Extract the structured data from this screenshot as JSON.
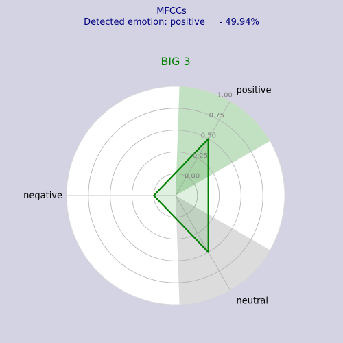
{
  "header": {
    "feature": "MFCCs",
    "detected_line": "Detected emotion: positive     - 49.94%"
  },
  "colors": {
    "background": "#d4d3e3",
    "header_text": "#000080",
    "title_text": "#008000",
    "polygon": "#008000",
    "positive_wedge": "#c2e0c2",
    "other_wedge": "#dcdcdc",
    "grid": "#b0b0b0"
  },
  "chart_data": {
    "type": "radar",
    "title": "BIG 3",
    "categories": [
      "positive",
      "neutral",
      "negative"
    ],
    "angles_deg": [
      60,
      300,
      180
    ],
    "values": [
      0.4994,
      0.5,
      0.0
    ],
    "r_ticks": [
      0.0,
      0.25,
      0.5,
      0.75,
      1.0
    ],
    "r_tick_labels": [
      "0.00",
      "0.25",
      "0.50",
      "0.75",
      "1.00"
    ],
    "r_min": -0.25,
    "r_max": 1.0,
    "grid": true,
    "highlighted_category": "positive",
    "wedges": [
      {
        "category": "positive",
        "start_deg": 30,
        "end_deg": 88,
        "color": "positive"
      },
      {
        "category": "neutral",
        "start_deg": 272,
        "end_deg": 330,
        "color": "other"
      }
    ]
  }
}
